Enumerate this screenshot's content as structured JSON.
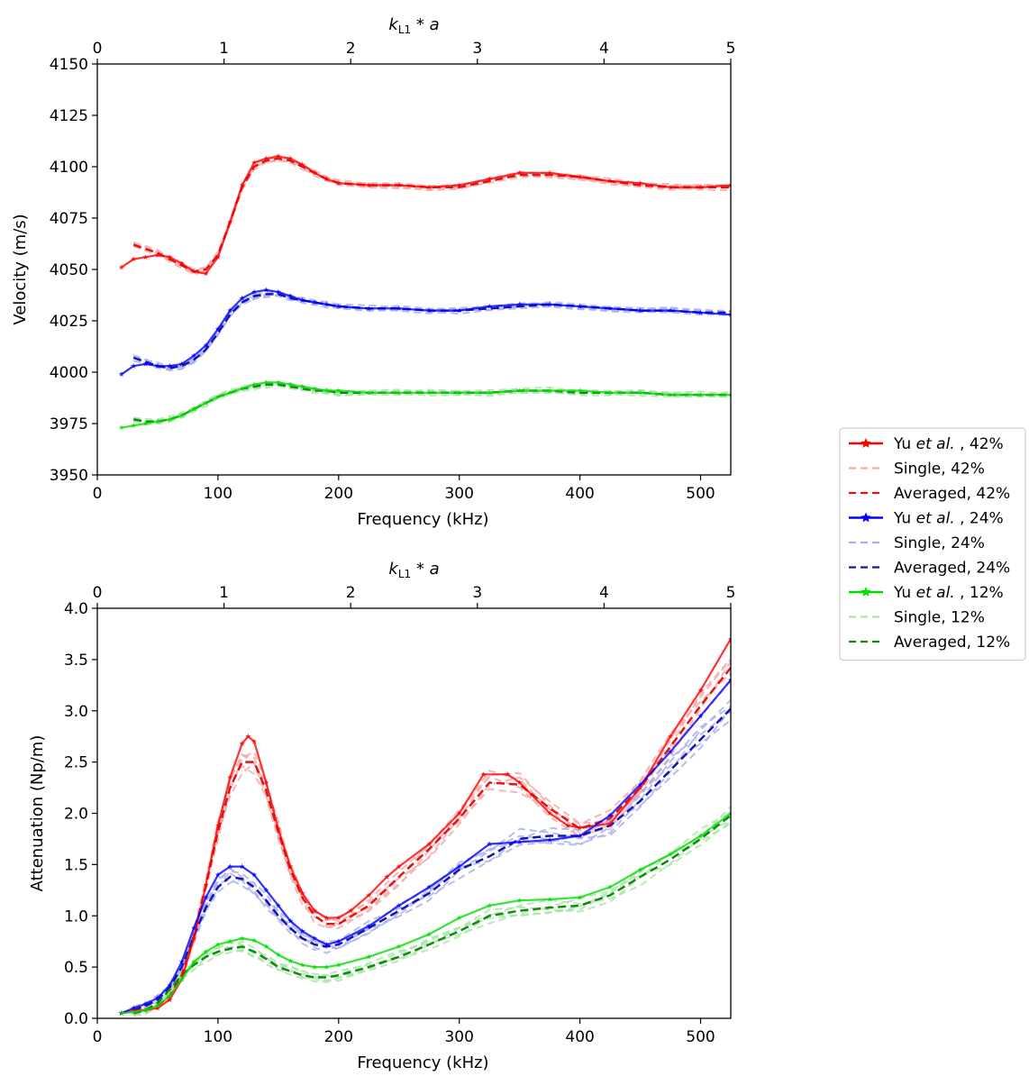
{
  "chart_data": [
    {
      "type": "line",
      "title": "",
      "xlabel": "Frequency (kHz)",
      "ylabel": "Velocity (m/s)",
      "top_xlabel": "k_L1 * a",
      "xlim": [
        0,
        525
      ],
      "ylim": [
        3950,
        4150
      ],
      "xticks": [
        0,
        100,
        200,
        300,
        400,
        500
      ],
      "yticks": [
        3950,
        3975,
        4000,
        4025,
        4050,
        4075,
        4100,
        4125,
        4150
      ],
      "top_xlim": [
        0,
        5
      ],
      "top_xticks": [
        0,
        1,
        2,
        3,
        4,
        5
      ],
      "series": [
        {
          "name": "Yu et al. , 42%",
          "group": "42",
          "kind": "yu",
          "x": [
            20,
            30,
            40,
            50,
            60,
            70,
            80,
            90,
            100,
            110,
            120,
            130,
            140,
            150,
            160,
            170,
            180,
            190,
            200,
            225,
            250,
            275,
            300,
            325,
            350,
            375,
            400,
            425,
            450,
            475,
            500,
            525
          ],
          "y": [
            4051,
            4055,
            4056,
            4057,
            4056,
            4053,
            4049,
            4048,
            4056,
            4073,
            4091,
            4102,
            4104,
            4105,
            4104,
            4101,
            4097,
            4094,
            4092,
            4091,
            4091,
            4090,
            4091,
            4094,
            4097,
            4097,
            4095,
            4093,
            4092,
            4090,
            4090,
            4091
          ]
        },
        {
          "name": "Averaged, 42%",
          "group": "42",
          "kind": "avg",
          "x": [
            30,
            40,
            50,
            60,
            70,
            80,
            90,
            100,
            110,
            120,
            130,
            140,
            150,
            160,
            170,
            180,
            190,
            200,
            225,
            250,
            275,
            300,
            325,
            350,
            375,
            400,
            425,
            450,
            475,
            500,
            525
          ],
          "y": [
            4062,
            4060,
            4058,
            4055,
            4052,
            4049,
            4050,
            4057,
            4073,
            4090,
            4100,
            4103,
            4104,
            4103,
            4100,
            4097,
            4094,
            4092,
            4091,
            4091,
            4090,
            4090,
            4093,
            4096,
            4096,
            4095,
            4093,
            4091,
            4090,
            4090,
            4090
          ]
        },
        {
          "name": "Yu et al. , 24%",
          "group": "24",
          "kind": "yu",
          "x": [
            20,
            30,
            40,
            50,
            60,
            70,
            80,
            90,
            100,
            110,
            120,
            130,
            140,
            150,
            160,
            170,
            180,
            190,
            200,
            225,
            250,
            275,
            300,
            325,
            350,
            375,
            400,
            425,
            450,
            475,
            500,
            525
          ],
          "y": [
            3999,
            4003,
            4004,
            4003,
            4003,
            4004,
            4008,
            4013,
            4021,
            4030,
            4036,
            4039,
            4040,
            4039,
            4037,
            4035,
            4034,
            4033,
            4032,
            4031,
            4031,
            4030,
            4030,
            4032,
            4033,
            4033,
            4032,
            4031,
            4030,
            4030,
            4029,
            4028
          ]
        },
        {
          "name": "Averaged, 24%",
          "group": "24",
          "kind": "avg",
          "x": [
            30,
            40,
            50,
            60,
            70,
            80,
            90,
            100,
            110,
            120,
            130,
            140,
            150,
            160,
            170,
            180,
            190,
            200,
            225,
            250,
            275,
            300,
            325,
            350,
            375,
            400,
            425,
            450,
            475,
            500,
            525
          ],
          "y": [
            4007,
            4005,
            4003,
            4002,
            4003,
            4006,
            4011,
            4019,
            4028,
            4034,
            4037,
            4038,
            4038,
            4036,
            4035,
            4034,
            4033,
            4032,
            4031,
            4031,
            4030,
            4030,
            4031,
            4032,
            4033,
            4032,
            4031,
            4030,
            4030,
            4029,
            4029
          ]
        },
        {
          "name": "Yu et al. , 12%",
          "group": "12",
          "kind": "yu",
          "x": [
            20,
            30,
            40,
            50,
            60,
            70,
            80,
            90,
            100,
            110,
            120,
            130,
            140,
            150,
            160,
            170,
            180,
            190,
            200,
            225,
            250,
            275,
            300,
            325,
            350,
            375,
            400,
            425,
            450,
            475,
            500,
            525
          ],
          "y": [
            3973,
            3974,
            3975,
            3976,
            3977,
            3979,
            3982,
            3985,
            3988,
            3990,
            3992,
            3994,
            3995,
            3995,
            3994,
            3993,
            3992,
            3991,
            3991,
            3990,
            3990,
            3990,
            3990,
            3990,
            3991,
            3991,
            3991,
            3990,
            3990,
            3989,
            3989,
            3989
          ]
        },
        {
          "name": "Averaged, 12%",
          "group": "12",
          "kind": "avg",
          "x": [
            30,
            40,
            50,
            60,
            70,
            80,
            90,
            100,
            110,
            120,
            130,
            140,
            150,
            160,
            170,
            180,
            190,
            200,
            225,
            250,
            275,
            300,
            325,
            350,
            375,
            400,
            425,
            450,
            475,
            500,
            525
          ],
          "y": [
            3977,
            3976,
            3976,
            3977,
            3979,
            3982,
            3985,
            3988,
            3990,
            3992,
            3993,
            3994,
            3994,
            3993,
            3992,
            3991,
            3991,
            3990,
            3990,
            3990,
            3990,
            3990,
            3990,
            3991,
            3991,
            3990,
            3990,
            3990,
            3989,
            3989,
            3989
          ]
        }
      ]
    },
    {
      "type": "line",
      "title": "",
      "xlabel": "Frequency (kHz)",
      "ylabel": "Attenuation (Np/m)",
      "top_xlabel": "k_L1 * a",
      "xlim": [
        0,
        525
      ],
      "ylim": [
        0.0,
        4.0
      ],
      "xticks": [
        0,
        100,
        200,
        300,
        400,
        500
      ],
      "yticks": [
        0.0,
        0.5,
        1.0,
        1.5,
        2.0,
        2.5,
        3.0,
        3.5,
        4.0
      ],
      "top_xlim": [
        0,
        5
      ],
      "top_xticks": [
        0,
        1,
        2,
        3,
        4,
        5
      ],
      "series": [
        {
          "name": "Yu et al. , 42%",
          "group": "42",
          "kind": "yu",
          "x": [
            20,
            30,
            40,
            50,
            60,
            70,
            80,
            90,
            100,
            110,
            120,
            125,
            130,
            140,
            150,
            160,
            170,
            180,
            190,
            200,
            210,
            225,
            240,
            250,
            275,
            300,
            320,
            340,
            350,
            360,
            375,
            390,
            400,
            425,
            450,
            475,
            500,
            525
          ],
          "y": [
            0.05,
            0.08,
            0.08,
            0.1,
            0.18,
            0.38,
            0.78,
            1.3,
            1.88,
            2.35,
            2.68,
            2.75,
            2.7,
            2.3,
            1.85,
            1.48,
            1.22,
            1.05,
            0.98,
            0.98,
            1.05,
            1.2,
            1.38,
            1.48,
            1.7,
            2.0,
            2.38,
            2.38,
            2.3,
            2.18,
            2.0,
            1.88,
            1.86,
            1.9,
            2.25,
            2.75,
            3.2,
            3.7
          ]
        },
        {
          "name": "Averaged, 42%",
          "group": "42",
          "kind": "avg",
          "x": [
            30,
            40,
            50,
            60,
            70,
            80,
            90,
            100,
            110,
            120,
            130,
            140,
            150,
            160,
            170,
            180,
            190,
            200,
            225,
            250,
            275,
            300,
            325,
            350,
            375,
            400,
            425,
            450,
            475,
            500,
            525
          ],
          "y": [
            0.05,
            0.08,
            0.12,
            0.22,
            0.42,
            0.8,
            1.3,
            1.82,
            2.25,
            2.5,
            2.5,
            2.22,
            1.82,
            1.45,
            1.18,
            1.0,
            0.92,
            0.92,
            1.1,
            1.38,
            1.65,
            1.95,
            2.3,
            2.28,
            2.05,
            1.85,
            1.95,
            2.25,
            2.65,
            3.05,
            3.42
          ]
        },
        {
          "name": "Yu et al. , 24%",
          "group": "24",
          "kind": "yu",
          "x": [
            20,
            30,
            40,
            50,
            60,
            70,
            80,
            90,
            100,
            110,
            120,
            130,
            140,
            150,
            160,
            170,
            180,
            190,
            200,
            225,
            250,
            275,
            300,
            325,
            350,
            375,
            400,
            425,
            450,
            475,
            500,
            525
          ],
          "y": [
            0.05,
            0.1,
            0.14,
            0.2,
            0.32,
            0.55,
            0.88,
            1.18,
            1.4,
            1.48,
            1.48,
            1.4,
            1.25,
            1.1,
            0.95,
            0.85,
            0.78,
            0.72,
            0.75,
            0.9,
            1.1,
            1.28,
            1.48,
            1.7,
            1.72,
            1.74,
            1.78,
            1.98,
            2.28,
            2.6,
            2.95,
            3.3
          ]
        },
        {
          "name": "Averaged, 24%",
          "group": "24",
          "kind": "avg",
          "x": [
            30,
            40,
            50,
            60,
            70,
            80,
            90,
            100,
            110,
            120,
            130,
            140,
            150,
            160,
            170,
            180,
            190,
            200,
            225,
            250,
            275,
            300,
            325,
            350,
            375,
            400,
            425,
            450,
            475,
            500,
            525
          ],
          "y": [
            0.08,
            0.12,
            0.18,
            0.3,
            0.5,
            0.8,
            1.08,
            1.28,
            1.38,
            1.36,
            1.28,
            1.15,
            1.0,
            0.88,
            0.78,
            0.72,
            0.7,
            0.72,
            0.88,
            1.05,
            1.22,
            1.45,
            1.58,
            1.75,
            1.78,
            1.78,
            1.88,
            2.12,
            2.42,
            2.72,
            3.02
          ]
        },
        {
          "name": "Yu et al. , 12%",
          "group": "12",
          "kind": "yu",
          "x": [
            20,
            30,
            40,
            50,
            60,
            70,
            80,
            90,
            100,
            110,
            120,
            130,
            140,
            150,
            160,
            170,
            180,
            190,
            200,
            225,
            250,
            275,
            300,
            325,
            350,
            375,
            400,
            425,
            450,
            475,
            500,
            525
          ],
          "y": [
            0.05,
            0.06,
            0.08,
            0.12,
            0.22,
            0.38,
            0.55,
            0.65,
            0.72,
            0.75,
            0.78,
            0.76,
            0.7,
            0.62,
            0.56,
            0.52,
            0.5,
            0.5,
            0.52,
            0.6,
            0.7,
            0.82,
            0.98,
            1.1,
            1.15,
            1.16,
            1.18,
            1.28,
            1.45,
            1.6,
            1.78,
            2.0
          ]
        },
        {
          "name": "Averaged, 12%",
          "group": "12",
          "kind": "avg",
          "x": [
            30,
            40,
            50,
            60,
            70,
            80,
            90,
            100,
            110,
            120,
            130,
            140,
            150,
            160,
            170,
            180,
            190,
            200,
            225,
            250,
            275,
            300,
            325,
            350,
            375,
            400,
            425,
            450,
            475,
            500,
            525
          ],
          "y": [
            0.05,
            0.08,
            0.15,
            0.28,
            0.42,
            0.52,
            0.6,
            0.65,
            0.68,
            0.7,
            0.65,
            0.58,
            0.5,
            0.46,
            0.42,
            0.4,
            0.4,
            0.42,
            0.5,
            0.6,
            0.72,
            0.85,
            1.0,
            1.05,
            1.08,
            1.1,
            1.2,
            1.38,
            1.55,
            1.75,
            1.98
          ]
        }
      ]
    }
  ],
  "legend": {
    "placement": "right",
    "entries": [
      {
        "prefix": "Yu ",
        "italic": "et al.",
        "suffix": " , 42%",
        "group": "42",
        "kind": "yu"
      },
      {
        "prefix": "Single, 42%",
        "italic": "",
        "suffix": "",
        "group": "42",
        "kind": "single"
      },
      {
        "prefix": "Averaged, 42%",
        "italic": "",
        "suffix": "",
        "group": "42",
        "kind": "avg"
      },
      {
        "prefix": "Yu ",
        "italic": "et al.",
        "suffix": " , 24%",
        "group": "24",
        "kind": "yu"
      },
      {
        "prefix": "Single, 24%",
        "italic": "",
        "suffix": "",
        "group": "24",
        "kind": "single"
      },
      {
        "prefix": "Averaged, 24%",
        "italic": "",
        "suffix": "",
        "group": "24",
        "kind": "avg"
      },
      {
        "prefix": "Yu ",
        "italic": "et al.",
        "suffix": " , 12%",
        "group": "12",
        "kind": "yu"
      },
      {
        "prefix": "Single, 12%",
        "italic": "",
        "suffix": "",
        "group": "12",
        "kind": "single"
      },
      {
        "prefix": "Averaged, 12%",
        "italic": "",
        "suffix": "",
        "group": "12",
        "kind": "avg"
      }
    ]
  },
  "colors": {
    "42": {
      "yu": "#ff0000",
      "single": "#f6aaaa",
      "avg": "#e01515"
    },
    "24": {
      "yu": "#0000ff",
      "single": "#aab0ee",
      "avg": "#1515b0"
    },
    "12": {
      "yu": "#00dd00",
      "single": "#a8e6a8",
      "avg": "#118811"
    }
  }
}
